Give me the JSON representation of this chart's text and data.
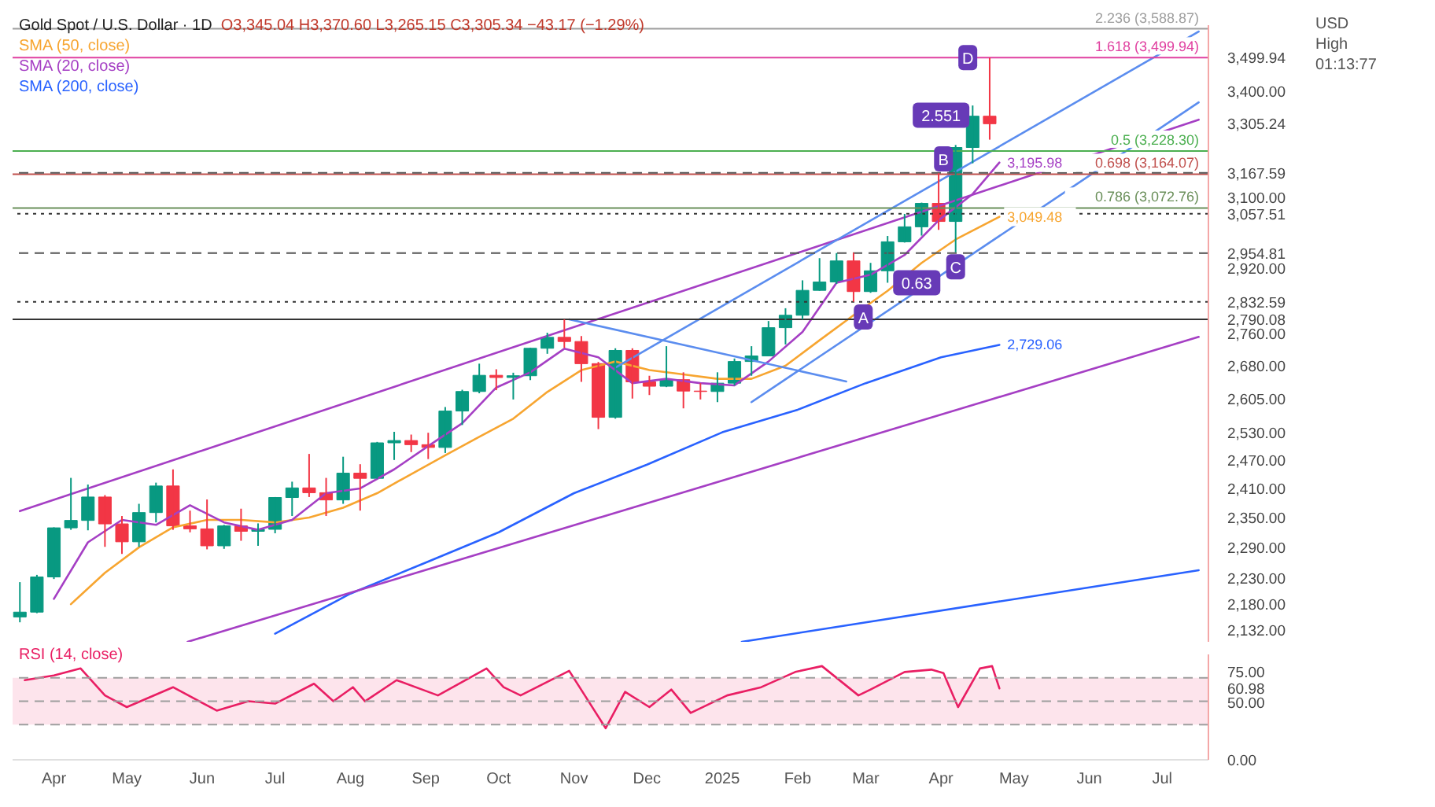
{
  "chart_data": [
    {
      "type": "candlestick",
      "title": "Gold Spot / U.S. Dollar · 1D",
      "subtitle": "O3,345.04 H3,370.60 L3,265.15 C3,305.34 −43.17 (−1.29%)",
      "legend": "top left",
      "log": true,
      "tick_labels": "y",
      "x": [
        "2024-03-18",
        "2024-03-25",
        "2024-04-01",
        "2024-04-08",
        "2024-04-15",
        "2024-04-22",
        "2024-04-29",
        "2024-05-06",
        "2024-05-13",
        "2024-05-20",
        "2024-05-27",
        "2024-06-03",
        "2024-06-10",
        "2024-06-17",
        "2024-06-24",
        "2024-07-01",
        "2024-07-08",
        "2024-07-15",
        "2024-07-22",
        "2024-07-29",
        "2024-08-05",
        "2024-08-12",
        "2024-08-19",
        "2024-08-26",
        "2024-09-02",
        "2024-09-09",
        "2024-09-16",
        "2024-09-23",
        "2024-09-30",
        "2024-10-07",
        "2024-10-14",
        "2024-10-21",
        "2024-10-28",
        "2024-11-04",
        "2024-11-11",
        "2024-11-18",
        "2024-11-25",
        "2024-12-02",
        "2024-12-09",
        "2024-12-16",
        "2024-12-23",
        "2024-12-30",
        "2025-01-06",
        "2025-01-13",
        "2025-01-20",
        "2025-01-27",
        "2025-02-03",
        "2025-02-10",
        "2025-02-17",
        "2025-02-24",
        "2025-03-03",
        "2025-03-10",
        "2025-03-17",
        "2025-03-24",
        "2025-03-31",
        "2025-04-07",
        "2025-04-14",
        "2025-04-21"
      ],
      "ohlc": [
        [
          2156,
          2222,
          2146,
          2165
        ],
        [
          2165,
          2236,
          2163,
          2232
        ],
        [
          2232,
          2330,
          2228,
          2329
        ],
        [
          2329,
          2432,
          2325,
          2344
        ],
        [
          2344,
          2418,
          2324,
          2392
        ],
        [
          2392,
          2396,
          2291,
          2337
        ],
        [
          2337,
          2353,
          2277,
          2301
        ],
        [
          2301,
          2378,
          2291,
          2360
        ],
        [
          2360,
          2422,
          2340,
          2415
        ],
        [
          2415,
          2450,
          2325,
          2333
        ],
        [
          2333,
          2364,
          2320,
          2327
        ],
        [
          2327,
          2387,
          2286,
          2293
        ],
        [
          2293,
          2335,
          2287,
          2333
        ],
        [
          2333,
          2368,
          2303,
          2322
        ],
        [
          2322,
          2338,
          2293,
          2326
        ],
        [
          2326,
          2392,
          2318,
          2391
        ],
        [
          2391,
          2424,
          2353,
          2411
        ],
        [
          2411,
          2483,
          2392,
          2401
        ],
        [
          2401,
          2432,
          2353,
          2386
        ],
        [
          2386,
          2477,
          2378,
          2442
        ],
        [
          2442,
          2461,
          2364,
          2431
        ],
        [
          2431,
          2509,
          2430,
          2507
        ],
        [
          2507,
          2531,
          2470,
          2512
        ],
        [
          2512,
          2525,
          2487,
          2503
        ],
        [
          2503,
          2529,
          2472,
          2497
        ],
        [
          2497,
          2586,
          2485,
          2577
        ],
        [
          2577,
          2625,
          2546,
          2621
        ],
        [
          2621,
          2685,
          2617,
          2658
        ],
        [
          2658,
          2672,
          2624,
          2653
        ],
        [
          2653,
          2664,
          2603,
          2657
        ],
        [
          2657,
          2722,
          2647,
          2721
        ],
        [
          2721,
          2758,
          2708,
          2747
        ],
        [
          2747,
          2790,
          2722,
          2737
        ],
        [
          2737,
          2750,
          2643,
          2685
        ],
        [
          2685,
          2689,
          2537,
          2563
        ],
        [
          2563,
          2721,
          2560,
          2716
        ],
        [
          2716,
          2721,
          2605,
          2643
        ],
        [
          2643,
          2657,
          2613,
          2633
        ],
        [
          2633,
          2726,
          2631,
          2648
        ],
        [
          2648,
          2665,
          2583,
          2622
        ],
        [
          2622,
          2640,
          2603,
          2621
        ],
        [
          2621,
          2665,
          2597,
          2640
        ],
        [
          2640,
          2697,
          2635,
          2690
        ],
        [
          2690,
          2726,
          2657,
          2703
        ],
        [
          2703,
          2786,
          2703,
          2770
        ],
        [
          2770,
          2817,
          2730,
          2800
        ],
        [
          2800,
          2886,
          2790,
          2861
        ],
        [
          2861,
          2942,
          2860,
          2882
        ],
        [
          2882,
          2955,
          2877,
          2935
        ],
        [
          2935,
          2956,
          2833,
          2858
        ],
        [
          2858,
          2930,
          2855,
          2910
        ],
        [
          2910,
          2999,
          2880,
          2984
        ],
        [
          2984,
          3057,
          2982,
          3023
        ],
        [
          3023,
          3087,
          3000,
          3085
        ],
        [
          3085,
          3167,
          3015,
          3037
        ],
        [
          3037,
          3245,
          2957,
          3238
        ],
        [
          3238,
          3358,
          3194,
          3327
        ],
        [
          3327,
          3500,
          3260,
          3305.34
        ]
      ],
      "colors": [
        "#089981",
        "#089981",
        "#089981",
        "#089981",
        "#089981",
        "#f23645",
        "#f23645",
        "#089981",
        "#089981",
        "#f23645",
        "#f23645",
        "#f23645",
        "#089981",
        "#f23645",
        "#089981",
        "#089981",
        "#089981",
        "#f23645",
        "#f23645",
        "#089981",
        "#f23645",
        "#089981",
        "#089981",
        "#f23645",
        "#f23645",
        "#089981",
        "#089981",
        "#089981",
        "#f23645",
        "#089981",
        "#089981",
        "#089981",
        "#f23645",
        "#f23645",
        "#f23645",
        "#089981",
        "#f23645",
        "#f23645",
        "#089981",
        "#f23645",
        "#f23645",
        "#089981",
        "#089981",
        "#089981",
        "#089981",
        "#089981",
        "#089981",
        "#089981",
        "#089981",
        "#f23645",
        "#089981",
        "#089981",
        "#089981",
        "#089981",
        "#f23645",
        "#089981",
        "#089981",
        "#f23645"
      ],
      "series": [
        {
          "name": "SMA (50, close)",
          "type": "line",
          "color": "#f7a530",
          "x": [
            "2024-04-08",
            "2024-04-22",
            "2024-05-06",
            "2024-05-20",
            "2024-06-03",
            "2024-06-17",
            "2024-07-01",
            "2024-07-15",
            "2024-07-29",
            "2024-08-12",
            "2024-08-26",
            "2024-09-09",
            "2024-09-23",
            "2024-10-07",
            "2024-10-21",
            "2024-11-04",
            "2024-11-18",
            "2024-12-02",
            "2024-12-16",
            "2024-12-30",
            "2025-01-13",
            "2025-01-27",
            "2025-02-10",
            "2025-02-24",
            "2025-03-10",
            "2025-03-24",
            "2025-04-07",
            "2025-04-25"
          ],
          "values": [
            2180,
            2240,
            2290,
            2330,
            2345,
            2345,
            2340,
            2350,
            2370,
            2400,
            2440,
            2480,
            2520,
            2560,
            2620,
            2670,
            2690,
            2670,
            2660,
            2650,
            2650,
            2680,
            2740,
            2800,
            2860,
            2930,
            2990,
            3049.48
          ],
          "value_labels": [
            null,
            null,
            null,
            null,
            null,
            null,
            null,
            null,
            null,
            null,
            null,
            null,
            null,
            null,
            null,
            null,
            null,
            null,
            null,
            null,
            null,
            null,
            null,
            null,
            null,
            null,
            null,
            "3,049.48"
          ]
        },
        {
          "name": "SMA (20, close)",
          "type": "line",
          "color": "#a53fc4",
          "x": [
            "2024-04-01",
            "2024-04-15",
            "2024-04-29",
            "2024-05-13",
            "2024-05-27",
            "2024-06-10",
            "2024-06-24",
            "2024-07-08",
            "2024-07-22",
            "2024-08-05",
            "2024-08-19",
            "2024-09-02",
            "2024-09-16",
            "2024-09-30",
            "2024-10-14",
            "2024-10-28",
            "2024-11-11",
            "2024-11-25",
            "2024-12-09",
            "2024-12-23",
            "2025-01-06",
            "2025-01-20",
            "2025-02-03",
            "2025-02-17",
            "2025-03-03",
            "2025-03-17",
            "2025-03-31",
            "2025-04-14",
            "2025-04-25"
          ],
          "values": [
            2190,
            2300,
            2345,
            2335,
            2375,
            2340,
            2325,
            2345,
            2400,
            2410,
            2450,
            2500,
            2550,
            2630,
            2665,
            2720,
            2700,
            2640,
            2650,
            2640,
            2635,
            2690,
            2760,
            2880,
            2900,
            2950,
            3040,
            3110,
            3195.98
          ],
          "value_labels": [
            null,
            null,
            null,
            null,
            null,
            null,
            null,
            null,
            null,
            null,
            null,
            null,
            null,
            null,
            null,
            null,
            null,
            null,
            null,
            null,
            null,
            null,
            null,
            null,
            null,
            null,
            null,
            null,
            "3,195.98"
          ]
        },
        {
          "name": "SMA (200, close)",
          "type": "line",
          "color": "#2962ff",
          "x": [
            "2024-07-01",
            "2024-08-01",
            "2024-09-01",
            "2024-10-01",
            "2024-11-01",
            "2024-12-01",
            "2025-01-01",
            "2025-02-01",
            "2025-03-01",
            "2025-04-01",
            "2025-04-25"
          ],
          "values": [
            2125,
            2200,
            2260,
            2320,
            2400,
            2460,
            2530,
            2580,
            2640,
            2700,
            2729.06
          ],
          "value_labels": [
            null,
            null,
            null,
            null,
            null,
            null,
            null,
            null,
            null,
            null,
            "2,729.06"
          ]
        },
        {
          "type": "line",
          "color": "#a53fc4",
          "x": [
            "2024-03-18",
            "2025-07-16"
          ],
          "values": [
            2363,
            3317
          ]
        },
        {
          "type": "line",
          "color": "#a53fc4",
          "x": [
            "2024-05-26",
            "2025-07-16"
          ],
          "values": [
            2110,
            2748
          ]
        },
        {
          "type": "line",
          "color": "#2962ff",
          "x": [
            "2025-01-09",
            "2025-07-16"
          ],
          "values": [
            2110,
            2245
          ]
        },
        {
          "type": "line",
          "color": "#5b8def",
          "x": [
            "2024-11-18",
            "2025-07-16"
          ],
          "values": [
            2676,
            3580
          ]
        },
        {
          "type": "line",
          "color": "#5b8def",
          "x": [
            "2025-01-13",
            "2025-07-16"
          ],
          "values": [
            2597,
            3367
          ]
        },
        {
          "type": "line",
          "color": "#5b8def",
          "x": [
            "2024-10-30",
            "2025-02-21"
          ],
          "values": [
            2790,
            2644
          ]
        }
      ],
      "xlim": [
        "2024-03-15",
        "2025-07-20"
      ],
      "ylim": [
        2110,
        3600
      ],
      "yticks": [
        {
          "value": 2132,
          "label": "2,132.00"
        },
        {
          "value": 2180,
          "label": "2,180.00"
        },
        {
          "value": 2230,
          "label": "2,230.00"
        },
        {
          "value": 2290,
          "label": "2,290.00"
        },
        {
          "value": 2350,
          "label": "2,350.00"
        },
        {
          "value": 2410,
          "label": "2,410.00"
        },
        {
          "value": 2470,
          "label": "2,470.00"
        },
        {
          "value": 2530,
          "label": "2,530.00"
        },
        {
          "value": 2605,
          "label": "2,605.00"
        },
        {
          "value": 2680,
          "label": "2,680.00"
        },
        {
          "value": 2760,
          "label": "2,760.00"
        },
        {
          "value": 2920,
          "label": "2,920.00"
        },
        {
          "value": 3100,
          "label": "3,100.00"
        },
        {
          "value": 3400,
          "label": "3,400.00"
        },
        {
          "value": 3499.94,
          "label": "3,499.94"
        },
        {
          "value": 3305.24,
          "label": "3,305.24"
        },
        {
          "value": 3167.59,
          "label": "3,167.59"
        },
        {
          "value": 3057.51,
          "label": "3,057.51"
        },
        {
          "value": 2954.81,
          "label": "2,954.81"
        },
        {
          "value": 2832.59,
          "label": "2,832.59"
        },
        {
          "value": 2790.08,
          "label": "2,790.08"
        }
      ],
      "ref_lines": [
        {
          "axis": "y",
          "value": 3588.87,
          "label": "2.236 (3,588.87)",
          "color": "#9e9e9e",
          "line_style": "solid"
        },
        {
          "axis": "y",
          "value": 3499.94,
          "label": "1.618 (3,499.94)",
          "color": "#e040a0",
          "line_style": "solid"
        },
        {
          "axis": "y",
          "value": 3228.3,
          "label": "0.5 (3,228.30)",
          "color": "#4caf50",
          "line_style": "solid"
        },
        {
          "axis": "y",
          "value": 3164.07,
          "label": "0.698 (3,164.07)",
          "color": "#c0504d",
          "line_style": "solid"
        },
        {
          "axis": "y",
          "value": 3167.59,
          "label": null,
          "color": "#555555",
          "line_style": "dashed"
        },
        {
          "axis": "y",
          "value": 3072.76,
          "label": "0.786 (3,072.76)",
          "color": "#6a8f5a",
          "line_style": "solid"
        },
        {
          "axis": "y",
          "value": 3057.51,
          "label": null,
          "color": "#333333",
          "line_style": "dotted"
        },
        {
          "axis": "y",
          "value": 2954.81,
          "label": null,
          "color": "#555555",
          "line_style": "dashed"
        },
        {
          "axis": "y",
          "value": 2832.59,
          "label": null,
          "color": "#333333",
          "line_style": "dotted"
        },
        {
          "axis": "y",
          "value": 2790.08,
          "label": null,
          "color": "#333333",
          "line_style": "solid"
        }
      ],
      "annotations": [
        "USD",
        "High",
        "01:13:77",
        {
          "text": "A",
          "x": "2025-02-28",
          "y": 2796
        },
        {
          "text": "B",
          "x": "2025-04-02",
          "y": 3206
        },
        {
          "text": "C",
          "x": "2025-04-07",
          "y": 2920
        },
        {
          "text": "D",
          "x": "2025-04-12",
          "y": 3499.94
        },
        {
          "text": "0.63",
          "x": "2025-03-22",
          "y": 2880
        },
        {
          "text": "2.551",
          "x": "2025-04-01",
          "y": 3330
        }
      ]
    },
    {
      "type": "line",
      "legend": "top left",
      "series": [
        {
          "name": "RSI (14, close)",
          "color": "#e91e63",
          "x": [
            "2024-03-20",
            "2024-04-01",
            "2024-04-12",
            "2024-04-22",
            "2024-05-01",
            "2024-05-20",
            "2024-06-07",
            "2024-06-20",
            "2024-07-01",
            "2024-07-17",
            "2024-07-25",
            "2024-08-02",
            "2024-08-07",
            "2024-08-20",
            "2024-09-06",
            "2024-09-26",
            "2024-10-03",
            "2024-10-10",
            "2024-10-30",
            "2024-11-14",
            "2024-11-22",
            "2024-12-02",
            "2024-12-11",
            "2024-12-19",
            "2025-01-03",
            "2025-01-17",
            "2025-01-31",
            "2025-02-11",
            "2025-02-26",
            "2025-03-03",
            "2025-03-17",
            "2025-03-28",
            "2025-04-02",
            "2025-04-08",
            "2025-04-17",
            "2025-04-22",
            "2025-04-25"
          ],
          "values": [
            68,
            72,
            78,
            55,
            45,
            62,
            42,
            50,
            48,
            65,
            50,
            62,
            50,
            68,
            55,
            78,
            62,
            55,
            76,
            27,
            58,
            45,
            60,
            40,
            55,
            62,
            75,
            80,
            55,
            60,
            75,
            77,
            74,
            45,
            78,
            80,
            60.98
          ]
        }
      ],
      "xlim": [
        "2024-03-15",
        "2025-07-20"
      ],
      "xticks": [
        {
          "value": "2024-04-01",
          "label": "Apr"
        },
        {
          "value": "2024-05-01",
          "label": "May"
        },
        {
          "value": "2024-06-01",
          "label": "Jun"
        },
        {
          "value": "2024-07-01",
          "label": "Jul"
        },
        {
          "value": "2024-08-01",
          "label": "Aug"
        },
        {
          "value": "2024-09-01",
          "label": "Sep"
        },
        {
          "value": "2024-10-01",
          "label": "Oct"
        },
        {
          "value": "2024-11-01",
          "label": "Nov"
        },
        {
          "value": "2024-12-01",
          "label": "Dec"
        },
        {
          "value": "2025-01-01",
          "label": "2025"
        },
        {
          "value": "2025-02-01",
          "label": "Feb"
        },
        {
          "value": "2025-03-01",
          "label": "Mar"
        },
        {
          "value": "2025-04-01",
          "label": "Apr"
        },
        {
          "value": "2025-05-01",
          "label": "May"
        },
        {
          "value": "2025-06-01",
          "label": "Jun"
        },
        {
          "value": "2025-07-01",
          "label": "Jul"
        }
      ],
      "ylim": [
        0,
        90
      ],
      "yticks": [
        {
          "value": 0,
          "label": "0.00"
        },
        {
          "value": 50,
          "label": "50.00"
        },
        {
          "value": 75,
          "label": "75.00"
        },
        {
          "value": 60.98,
          "label": "60.98"
        }
      ],
      "bands": [
        {
          "axis": "y",
          "from": 30,
          "to": 70,
          "color": "#fde4ec"
        }
      ],
      "ref_lines": [
        {
          "axis": "y",
          "value": 70,
          "label": null,
          "color": "#9e9e9e",
          "line_style": "dashed"
        },
        {
          "axis": "y",
          "value": 50,
          "label": null,
          "color": "#9e9e9e",
          "line_style": "dashed"
        },
        {
          "axis": "y",
          "value": 30,
          "label": null,
          "color": "#9e9e9e",
          "line_style": "dashed"
        }
      ]
    }
  ]
}
